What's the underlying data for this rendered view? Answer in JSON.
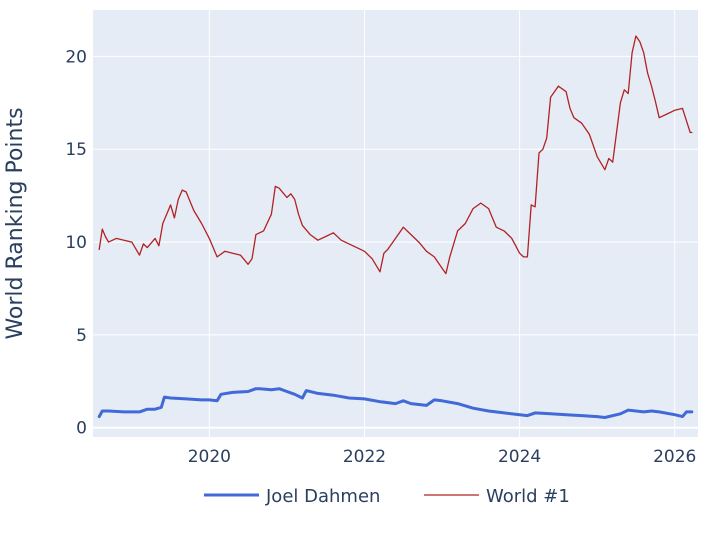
{
  "chart_data": {
    "type": "line",
    "title": "",
    "xlabel": "",
    "ylabel": "World Ranking Points",
    "xlim": [
      2018.5,
      2026.3
    ],
    "ylim": [
      -0.5,
      22.5
    ],
    "x_ticks": [
      2020,
      2022,
      2024,
      2026
    ],
    "x_tick_labels": [
      "2020",
      "2022",
      "2024",
      "2026"
    ],
    "y_ticks": [
      0,
      5,
      10,
      15,
      20
    ],
    "y_tick_labels": [
      "0",
      "5",
      "10",
      "15",
      "20"
    ],
    "grid": true,
    "legend_position": "bottom",
    "plot_bgcolor": "#e5ecf6",
    "series": [
      {
        "name": "Joel Dahmen",
        "color": "#4169d8",
        "x": [
          2018.58,
          2018.62,
          2018.7,
          2018.9,
          2019.1,
          2019.2,
          2019.3,
          2019.38,
          2019.42,
          2019.5,
          2019.7,
          2019.9,
          2020.0,
          2020.1,
          2020.15,
          2020.3,
          2020.5,
          2020.6,
          2020.65,
          2020.8,
          2020.9,
          2021.0,
          2021.1,
          2021.2,
          2021.25,
          2021.4,
          2021.6,
          2021.8,
          2022.0,
          2022.2,
          2022.4,
          2022.5,
          2022.6,
          2022.8,
          2022.9,
          2023.0,
          2023.2,
          2023.4,
          2023.6,
          2023.8,
          2024.0,
          2024.1,
          2024.2,
          2024.4,
          2024.6,
          2024.8,
          2025.0,
          2025.1,
          2025.3,
          2025.4,
          2025.6,
          2025.7,
          2025.8,
          2026.0,
          2026.1,
          2026.15,
          2026.22
        ],
        "values": [
          0.6,
          0.9,
          0.9,
          0.85,
          0.85,
          1.0,
          1.0,
          1.1,
          1.65,
          1.6,
          1.55,
          1.5,
          1.5,
          1.45,
          1.8,
          1.9,
          1.95,
          2.1,
          2.1,
          2.05,
          2.1,
          1.95,
          1.8,
          1.6,
          2.0,
          1.85,
          1.75,
          1.6,
          1.55,
          1.4,
          1.3,
          1.45,
          1.3,
          1.2,
          1.5,
          1.45,
          1.3,
          1.05,
          0.9,
          0.8,
          0.7,
          0.65,
          0.8,
          0.75,
          0.7,
          0.65,
          0.6,
          0.55,
          0.75,
          0.95,
          0.85,
          0.9,
          0.85,
          0.7,
          0.6,
          0.85,
          0.85
        ]
      },
      {
        "name": "World #1",
        "color": "#b22222",
        "x": [
          2018.58,
          2018.62,
          2018.66,
          2018.7,
          2018.8,
          2018.9,
          2019.0,
          2019.1,
          2019.15,
          2019.2,
          2019.3,
          2019.35,
          2019.4,
          2019.45,
          2019.5,
          2019.55,
          2019.6,
          2019.65,
          2019.7,
          2019.8,
          2019.9,
          2020.0,
          2020.1,
          2020.2,
          2020.3,
          2020.4,
          2020.5,
          2020.55,
          2020.6,
          2020.7,
          2020.8,
          2020.85,
          2020.9,
          2021.0,
          2021.05,
          2021.1,
          2021.15,
          2021.2,
          2021.3,
          2021.4,
          2021.5,
          2021.6,
          2021.7,
          2021.8,
          2021.9,
          2022.0,
          2022.1,
          2022.2,
          2022.25,
          2022.3,
          2022.4,
          2022.5,
          2022.6,
          2022.7,
          2022.8,
          2022.9,
          2023.0,
          2023.05,
          2023.1,
          2023.2,
          2023.3,
          2023.4,
          2023.5,
          2023.6,
          2023.7,
          2023.8,
          2023.9,
          2024.0,
          2024.05,
          2024.1,
          2024.15,
          2024.2,
          2024.25,
          2024.3,
          2024.35,
          2024.4,
          2024.5,
          2024.6,
          2024.65,
          2024.7,
          2024.8,
          2024.9,
          2025.0,
          2025.1,
          2025.15,
          2025.2,
          2025.3,
          2025.35,
          2025.4,
          2025.45,
          2025.5,
          2025.55,
          2025.6,
          2025.65,
          2025.7,
          2025.75,
          2025.8,
          2025.9,
          2026.0,
          2026.1,
          2026.2,
          2026.22
        ],
        "values": [
          9.6,
          10.7,
          10.3,
          10.0,
          10.2,
          10.1,
          10.0,
          9.3,
          9.9,
          9.7,
          10.2,
          9.8,
          11.0,
          11.5,
          12.0,
          11.3,
          12.3,
          12.8,
          12.7,
          11.7,
          11.0,
          10.2,
          9.2,
          9.5,
          9.4,
          9.3,
          8.8,
          9.1,
          10.4,
          10.6,
          11.5,
          13.0,
          12.9,
          12.4,
          12.6,
          12.3,
          11.5,
          10.9,
          10.4,
          10.1,
          10.3,
          10.5,
          10.1,
          9.9,
          9.7,
          9.5,
          9.1,
          8.4,
          9.4,
          9.6,
          10.2,
          10.8,
          10.4,
          10.0,
          9.5,
          9.2,
          8.6,
          8.3,
          9.2,
          10.6,
          11.0,
          11.8,
          12.1,
          11.8,
          10.8,
          10.6,
          10.2,
          9.4,
          9.2,
          9.2,
          12.0,
          11.9,
          14.8,
          15.0,
          15.6,
          17.8,
          18.4,
          18.1,
          17.2,
          16.7,
          16.4,
          15.8,
          14.6,
          13.9,
          14.5,
          14.3,
          17.5,
          18.2,
          18.0,
          20.2,
          21.1,
          20.8,
          20.2,
          19.1,
          18.4,
          17.6,
          16.7,
          16.9,
          17.1,
          17.2,
          15.9,
          15.9
        ]
      }
    ]
  }
}
